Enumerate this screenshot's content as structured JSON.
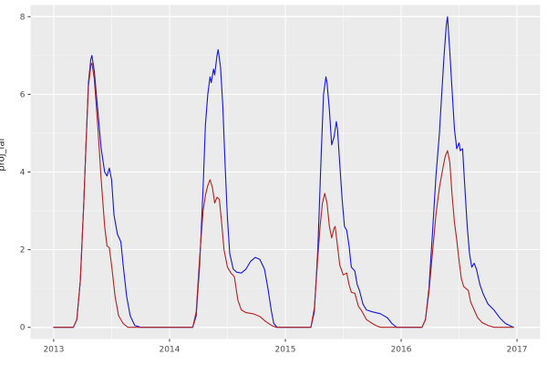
{
  "chart_data": {
    "type": "line",
    "title": "",
    "xlabel": "",
    "ylabel": "proj_lai",
    "xlim": [
      2012.8,
      2017.2
    ],
    "ylim": [
      -0.3,
      8.3
    ],
    "x_ticks": [
      2013,
      2014,
      2015,
      2016,
      2017
    ],
    "x_tick_labels": [
      "2013",
      "2014",
      "2015",
      "2016",
      "2017"
    ],
    "x_minor_ticks": [
      2013.5,
      2014.5,
      2015.5,
      2016.5
    ],
    "y_ticks": [
      0,
      2,
      4,
      6,
      8
    ],
    "y_tick_labels": [
      "0",
      "2",
      "4",
      "6",
      "8"
    ],
    "y_minor_ticks": [
      1,
      3,
      5,
      7
    ],
    "grid": true,
    "legend": "none",
    "series": [
      {
        "name": "blue-line",
        "color": "#1414e0",
        "points": [
          [
            2013.0,
            0
          ],
          [
            2013.17,
            0
          ],
          [
            2013.2,
            0.2
          ],
          [
            2013.23,
            1.2
          ],
          [
            2013.26,
            3.2
          ],
          [
            2013.28,
            4.8
          ],
          [
            2013.3,
            6.3
          ],
          [
            2013.32,
            6.9
          ],
          [
            2013.33,
            7.0
          ],
          [
            2013.35,
            6.6
          ],
          [
            2013.38,
            5.6
          ],
          [
            2013.41,
            4.6
          ],
          [
            2013.44,
            4.0
          ],
          [
            2013.46,
            3.9
          ],
          [
            2013.48,
            4.1
          ],
          [
            2013.5,
            3.8
          ],
          [
            2013.52,
            2.9
          ],
          [
            2013.55,
            2.4
          ],
          [
            2013.58,
            2.2
          ],
          [
            2013.6,
            1.6
          ],
          [
            2013.63,
            0.8
          ],
          [
            2013.66,
            0.3
          ],
          [
            2013.7,
            0.05
          ],
          [
            2013.75,
            0
          ],
          [
            2014.2,
            0
          ],
          [
            2014.23,
            0.3
          ],
          [
            2014.26,
            1.6
          ],
          [
            2014.29,
            3.6
          ],
          [
            2014.31,
            5.2
          ],
          [
            2014.33,
            6.0
          ],
          [
            2014.35,
            6.45
          ],
          [
            2014.36,
            6.3
          ],
          [
            2014.38,
            6.65
          ],
          [
            2014.39,
            6.5
          ],
          [
            2014.41,
            7.0
          ],
          [
            2014.42,
            7.15
          ],
          [
            2014.44,
            6.7
          ],
          [
            2014.46,
            5.7
          ],
          [
            2014.48,
            4.2
          ],
          [
            2014.5,
            2.8
          ],
          [
            2014.52,
            1.9
          ],
          [
            2014.55,
            1.5
          ],
          [
            2014.58,
            1.42
          ],
          [
            2014.62,
            1.4
          ],
          [
            2014.66,
            1.5
          ],
          [
            2014.7,
            1.7
          ],
          [
            2014.74,
            1.8
          ],
          [
            2014.78,
            1.75
          ],
          [
            2014.82,
            1.5
          ],
          [
            2014.85,
            1.0
          ],
          [
            2014.88,
            0.4
          ],
          [
            2014.9,
            0.1
          ],
          [
            2014.93,
            0
          ],
          [
            2015.22,
            0
          ],
          [
            2015.25,
            0.4
          ],
          [
            2015.28,
            2.0
          ],
          [
            2015.31,
            4.5
          ],
          [
            2015.33,
            6.0
          ],
          [
            2015.35,
            6.45
          ],
          [
            2015.36,
            6.3
          ],
          [
            2015.38,
            5.6
          ],
          [
            2015.4,
            4.7
          ],
          [
            2015.42,
            4.9
          ],
          [
            2015.44,
            5.3
          ],
          [
            2015.45,
            5.1
          ],
          [
            2015.47,
            4.2
          ],
          [
            2015.49,
            3.3
          ],
          [
            2015.51,
            2.6
          ],
          [
            2015.53,
            2.5
          ],
          [
            2015.55,
            2.1
          ],
          [
            2015.57,
            1.55
          ],
          [
            2015.6,
            1.45
          ],
          [
            2015.62,
            1.1
          ],
          [
            2015.64,
            0.95
          ],
          [
            2015.67,
            0.6
          ],
          [
            2015.7,
            0.45
          ],
          [
            2015.75,
            0.4
          ],
          [
            2015.82,
            0.35
          ],
          [
            2015.88,
            0.25
          ],
          [
            2015.92,
            0.1
          ],
          [
            2015.96,
            0
          ],
          [
            2016.18,
            0
          ],
          [
            2016.21,
            0.2
          ],
          [
            2016.24,
            1.0
          ],
          [
            2016.27,
            2.4
          ],
          [
            2016.3,
            3.9
          ],
          [
            2016.33,
            5.0
          ],
          [
            2016.35,
            6.0
          ],
          [
            2016.37,
            7.0
          ],
          [
            2016.39,
            7.8
          ],
          [
            2016.4,
            8.0
          ],
          [
            2016.42,
            7.1
          ],
          [
            2016.44,
            6.1
          ],
          [
            2016.46,
            5.1
          ],
          [
            2016.48,
            4.6
          ],
          [
            2016.5,
            4.75
          ],
          [
            2016.51,
            4.55
          ],
          [
            2016.53,
            4.6
          ],
          [
            2016.55,
            3.6
          ],
          [
            2016.57,
            2.6
          ],
          [
            2016.59,
            1.9
          ],
          [
            2016.61,
            1.55
          ],
          [
            2016.63,
            1.65
          ],
          [
            2016.65,
            1.5
          ],
          [
            2016.68,
            1.1
          ],
          [
            2016.71,
            0.85
          ],
          [
            2016.75,
            0.6
          ],
          [
            2016.8,
            0.45
          ],
          [
            2016.85,
            0.25
          ],
          [
            2016.9,
            0.1
          ],
          [
            2016.97,
            0
          ]
        ]
      },
      {
        "name": "red-line",
        "color": "#b22222",
        "points": [
          [
            2013.0,
            0
          ],
          [
            2013.17,
            0
          ],
          [
            2013.2,
            0.2
          ],
          [
            2013.23,
            1.2
          ],
          [
            2013.26,
            3.2
          ],
          [
            2013.28,
            4.8
          ],
          [
            2013.3,
            6.2
          ],
          [
            2013.32,
            6.75
          ],
          [
            2013.33,
            6.8
          ],
          [
            2013.35,
            6.4
          ],
          [
            2013.38,
            5.2
          ],
          [
            2013.41,
            3.8
          ],
          [
            2013.44,
            2.6
          ],
          [
            2013.46,
            2.1
          ],
          [
            2013.48,
            2.05
          ],
          [
            2013.5,
            1.6
          ],
          [
            2013.53,
            0.8
          ],
          [
            2013.56,
            0.3
          ],
          [
            2013.6,
            0.1
          ],
          [
            2013.64,
            0
          ],
          [
            2014.2,
            0
          ],
          [
            2014.23,
            0.4
          ],
          [
            2014.26,
            1.8
          ],
          [
            2014.29,
            3.0
          ],
          [
            2014.31,
            3.4
          ],
          [
            2014.33,
            3.65
          ],
          [
            2014.35,
            3.8
          ],
          [
            2014.37,
            3.6
          ],
          [
            2014.39,
            3.2
          ],
          [
            2014.41,
            3.35
          ],
          [
            2014.43,
            3.3
          ],
          [
            2014.45,
            2.7
          ],
          [
            2014.47,
            2.0
          ],
          [
            2014.5,
            1.55
          ],
          [
            2014.53,
            1.4
          ],
          [
            2014.56,
            1.3
          ],
          [
            2014.59,
            0.7
          ],
          [
            2014.62,
            0.45
          ],
          [
            2014.66,
            0.38
          ],
          [
            2014.72,
            0.35
          ],
          [
            2014.78,
            0.28
          ],
          [
            2014.83,
            0.15
          ],
          [
            2014.88,
            0.05
          ],
          [
            2014.92,
            0
          ],
          [
            2015.22,
            0
          ],
          [
            2015.25,
            0.5
          ],
          [
            2015.28,
            1.8
          ],
          [
            2015.3,
            2.6
          ],
          [
            2015.32,
            3.2
          ],
          [
            2015.34,
            3.45
          ],
          [
            2015.36,
            3.2
          ],
          [
            2015.38,
            2.6
          ],
          [
            2015.4,
            2.3
          ],
          [
            2015.42,
            2.55
          ],
          [
            2015.43,
            2.6
          ],
          [
            2015.45,
            2.1
          ],
          [
            2015.47,
            1.6
          ],
          [
            2015.5,
            1.35
          ],
          [
            2015.53,
            1.4
          ],
          [
            2015.55,
            1.1
          ],
          [
            2015.57,
            0.9
          ],
          [
            2015.6,
            0.88
          ],
          [
            2015.63,
            0.55
          ],
          [
            2015.66,
            0.42
          ],
          [
            2015.7,
            0.2
          ],
          [
            2015.74,
            0.12
          ],
          [
            2015.78,
            0.05
          ],
          [
            2015.82,
            0
          ],
          [
            2016.18,
            0
          ],
          [
            2016.21,
            0.2
          ],
          [
            2016.24,
            0.9
          ],
          [
            2016.27,
            1.9
          ],
          [
            2016.3,
            2.9
          ],
          [
            2016.33,
            3.6
          ],
          [
            2016.36,
            4.1
          ],
          [
            2016.38,
            4.4
          ],
          [
            2016.4,
            4.55
          ],
          [
            2016.42,
            4.25
          ],
          [
            2016.44,
            3.4
          ],
          [
            2016.46,
            2.7
          ],
          [
            2016.48,
            2.25
          ],
          [
            2016.5,
            1.7
          ],
          [
            2016.52,
            1.25
          ],
          [
            2016.54,
            1.05
          ],
          [
            2016.56,
            1.0
          ],
          [
            2016.58,
            0.95
          ],
          [
            2016.6,
            0.65
          ],
          [
            2016.63,
            0.45
          ],
          [
            2016.66,
            0.25
          ],
          [
            2016.7,
            0.12
          ],
          [
            2016.75,
            0.05
          ],
          [
            2016.8,
            0
          ],
          [
            2016.97,
            0
          ]
        ]
      }
    ]
  },
  "theme": {
    "outer_bg": "#ffffff",
    "panel_bg": "#ebebeb",
    "grid_major": "#ffffff",
    "grid_minor": "#f4f4f4",
    "tick_mark_color": "#333333",
    "tick_label_color": "#4d4d4d",
    "axis_title_color": "#1a1a1a"
  }
}
